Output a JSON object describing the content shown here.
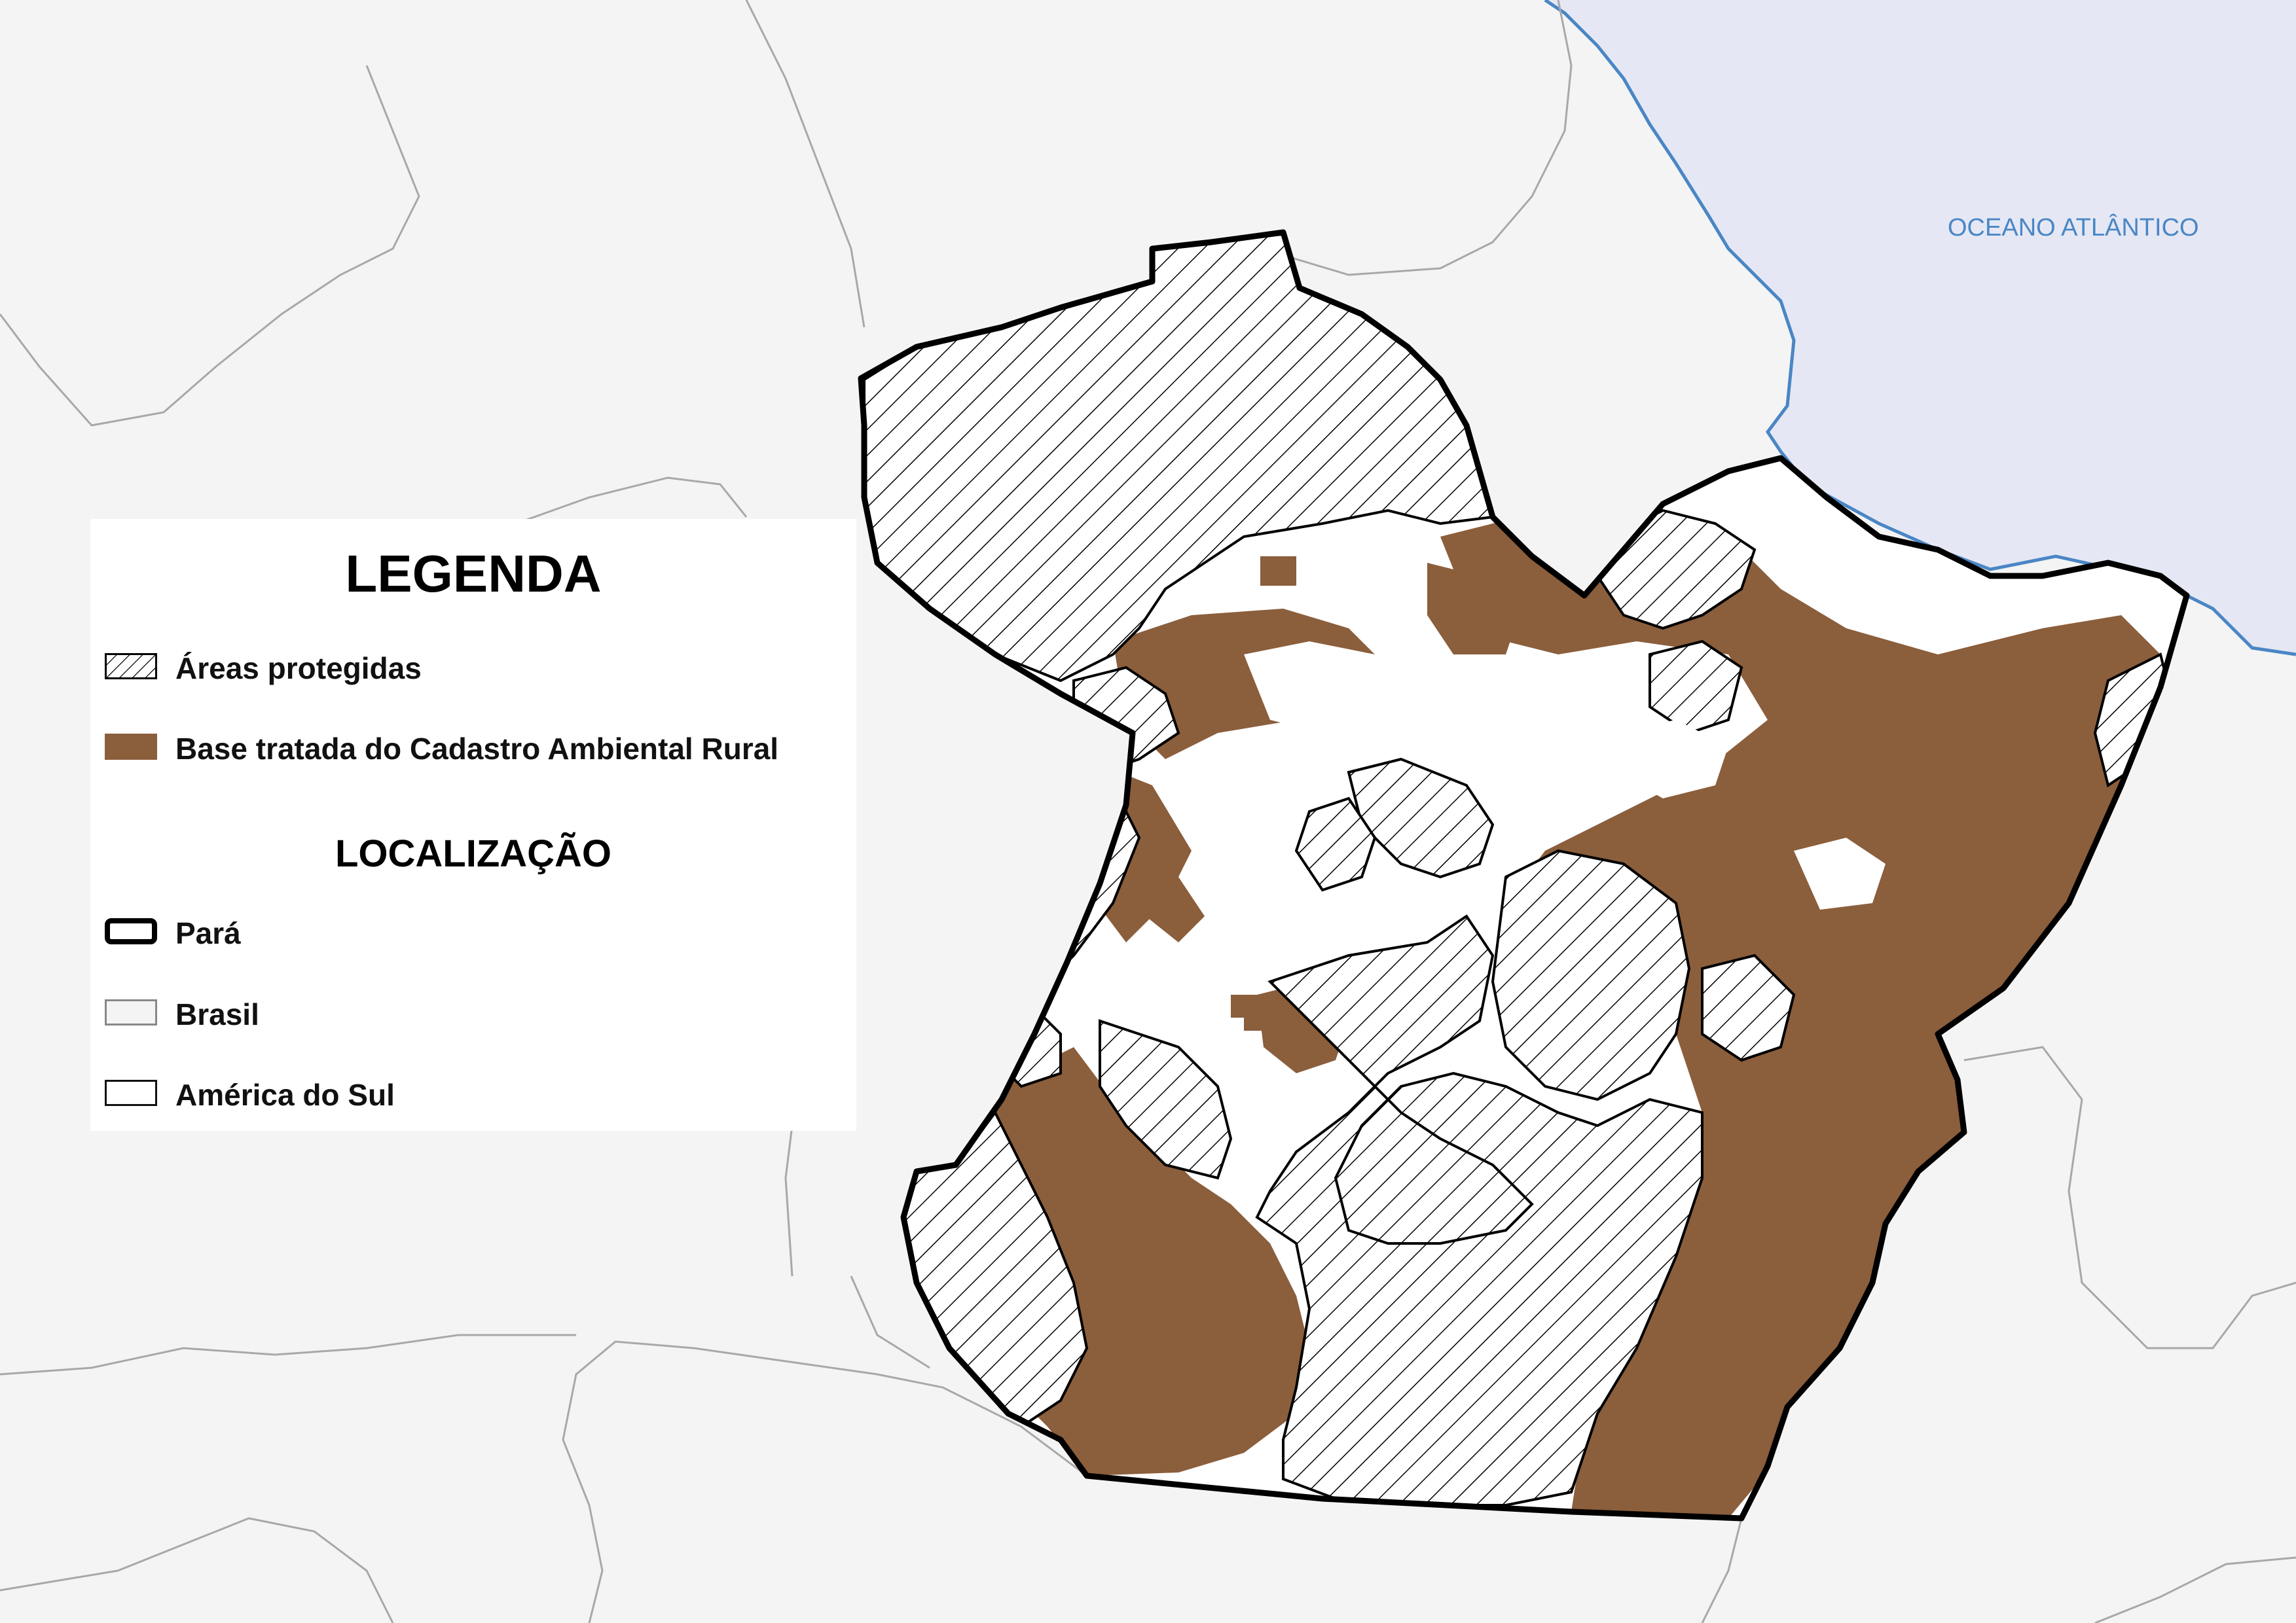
{
  "map": {
    "ocean_label": "OCEANO ATLÂNTICO",
    "colors": {
      "background": "#f4f4f4",
      "ocean": "#e5e8f4",
      "coastline": "#4a86c5",
      "borders": "#a8a8a8",
      "para_fill": "#ffffff",
      "para_outline": "#000000",
      "car_base": "#8b5e3c",
      "protected_hatch": "#000000"
    }
  },
  "legend": {
    "title": "LEGENDA",
    "items": [
      {
        "label": "Áreas protegidas",
        "symbol": "hatch-box-icon"
      },
      {
        "label": "Base tratada do Cadastro Ambiental Rural",
        "symbol": "brown-fill-box-icon"
      }
    ],
    "location_title": "LOCALIZAÇÃO",
    "location_items": [
      {
        "label": "Pará",
        "symbol": "thick-outline-box-icon"
      },
      {
        "label": "Brasil",
        "symbol": "grey-fill-box-icon"
      },
      {
        "label": "América do Sul",
        "symbol": "white-fill-box-icon"
      }
    ]
  }
}
